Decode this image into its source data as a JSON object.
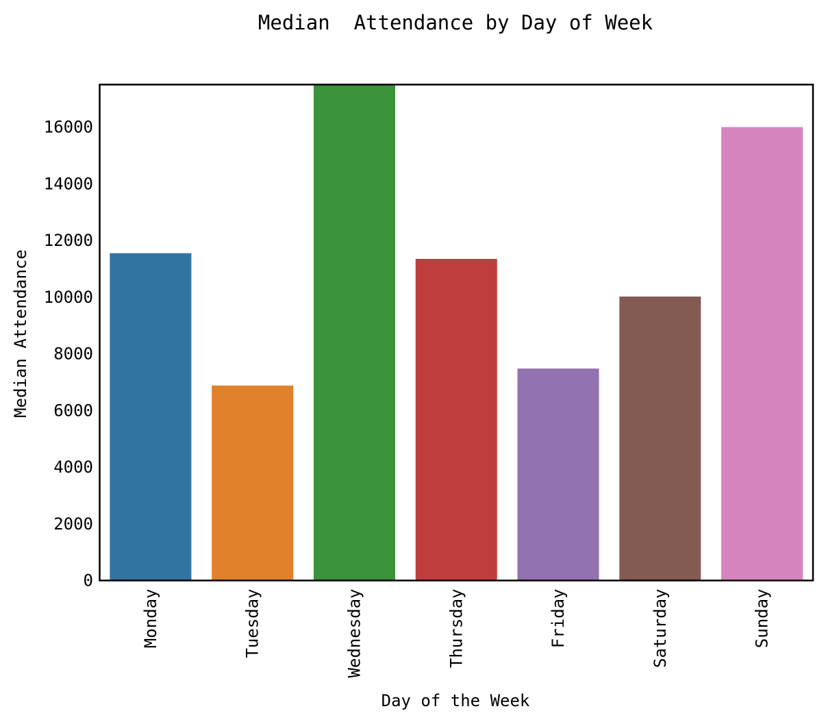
{
  "chart_data": {
    "type": "bar",
    "title": "Median  Attendance by Day of Week",
    "xlabel": "Day of the Week",
    "ylabel": "Median Attendance",
    "categories": [
      "Monday",
      "Tuesday",
      "Wednesday",
      "Thursday",
      "Friday",
      "Saturday",
      "Sunday"
    ],
    "values": [
      11550,
      6880,
      17600,
      11350,
      7480,
      10020,
      16000
    ],
    "colors": [
      "#3274a1",
      "#e1812c",
      "#3a923a",
      "#c03d3e",
      "#9372b2",
      "#845b53",
      "#d684bd"
    ],
    "ylim": [
      0,
      17500
    ],
    "yticks": [
      0,
      2000,
      4000,
      6000,
      8000,
      10000,
      12000,
      14000,
      16000
    ],
    "grid": false,
    "legend": "none"
  }
}
